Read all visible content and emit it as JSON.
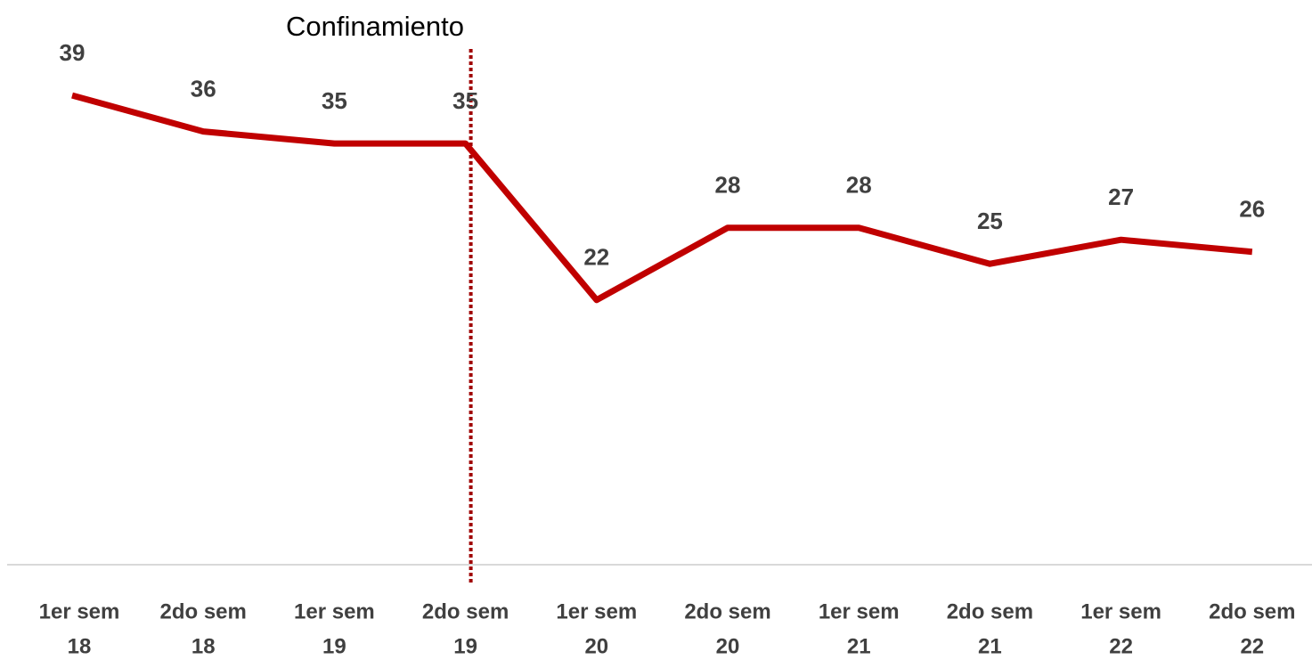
{
  "chart_data": {
    "type": "line",
    "annotation": "Confinamiento",
    "categories": [
      [
        "1er sem",
        "18"
      ],
      [
        "2do sem",
        "18"
      ],
      [
        "1er sem",
        "19"
      ],
      [
        "2do sem",
        "19"
      ],
      [
        "1er sem",
        "20"
      ],
      [
        "2do sem",
        "20"
      ],
      [
        "1er sem",
        "21"
      ],
      [
        "2do sem",
        "21"
      ],
      [
        "1er sem",
        "22"
      ],
      [
        "2do sem",
        "22"
      ]
    ],
    "series": [
      {
        "name": null,
        "color": "#c00000",
        "values": [
          39,
          36,
          35,
          35,
          22,
          28,
          28,
          25,
          27,
          26
        ]
      }
    ],
    "ylim": [
      0,
      45
    ]
  }
}
